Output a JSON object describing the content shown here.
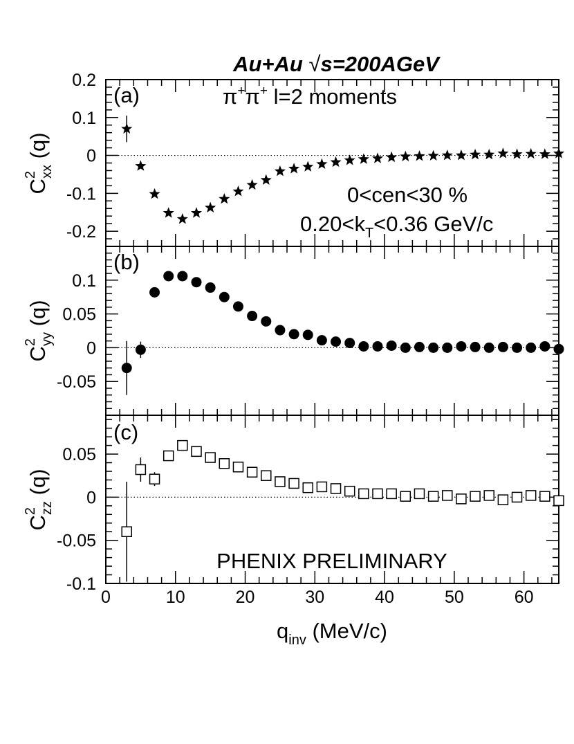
{
  "title": {
    "prefix": "Au+Au ",
    "radical": "√",
    "suffix": "s=200AGeV"
  },
  "xaxis": {
    "label": "q",
    "label_sub": "inv",
    "label_tail": " (MeV/c)",
    "range": [
      0,
      65
    ],
    "ticks": [
      0,
      10,
      20,
      30,
      40,
      50,
      60
    ],
    "tick_labels": [
      "0",
      "10",
      "20",
      "30",
      "40",
      "50",
      "60"
    ]
  },
  "annotations": {
    "line1": {
      "pre": "π",
      "sup1": "+",
      "mid": "π",
      "sup2": "+",
      "post": " l=2 moments"
    },
    "centrality": "0<cen<30 %",
    "kt": {
      "pre": "0.20<k",
      "sub": "T",
      "post": "<0.36 GeV/c"
    },
    "watermark": "PHENIX PRELIMINARY"
  },
  "chart_data": [
    {
      "type": "scatter",
      "panel": "a",
      "panel_label": "(a)",
      "ylabel": {
        "base": "C",
        "sup": "2",
        "sub": "xx",
        "tail": " (q)"
      },
      "ylim": [
        -0.24,
        0.2
      ],
      "yticks": [
        -0.2,
        -0.1,
        0,
        0.1,
        0.2
      ],
      "ytick_labels": [
        "-0.2",
        "-0.1",
        "0",
        "0.1",
        "0.2"
      ],
      "marker": "star",
      "x": [
        3,
        5,
        7,
        9,
        11,
        13,
        15,
        17,
        19,
        21,
        23,
        25,
        27,
        29,
        31,
        33,
        35,
        37,
        39,
        41,
        43,
        45,
        47,
        49,
        51,
        53,
        55,
        57,
        59,
        61,
        63,
        65
      ],
      "y": [
        0.07,
        -0.028,
        -0.102,
        -0.152,
        -0.168,
        -0.152,
        -0.138,
        -0.115,
        -0.095,
        -0.078,
        -0.065,
        -0.042,
        -0.035,
        -0.03,
        -0.023,
        -0.018,
        -0.013,
        -0.01,
        -0.008,
        -0.005,
        -0.003,
        -0.002,
        -0.001,
        0.0,
        0.0,
        0.002,
        0.002,
        0.005,
        0.003,
        0.004,
        0.003,
        0.005
      ],
      "yerr": [
        0.035,
        0.005,
        0.005,
        0.004,
        0.004,
        0.004,
        0.004,
        0.004,
        0.004,
        0.004,
        0.004,
        0.004,
        0.004,
        0.004,
        0.004,
        0.004,
        0.004,
        0.004,
        0.004,
        0.004,
        0.004,
        0.004,
        0.004,
        0.004,
        0.004,
        0.004,
        0.004,
        0.004,
        0.004,
        0.004,
        0.004,
        0.004
      ]
    },
    {
      "type": "scatter",
      "panel": "b",
      "panel_label": "(b)",
      "ylabel": {
        "base": "C",
        "sup": "2",
        "sub": "yy",
        "tail": " (q)"
      },
      "ylim": [
        -0.1,
        0.15
      ],
      "yticks": [
        -0.05,
        0,
        0.05,
        0.1
      ],
      "ytick_labels": [
        "-0.05",
        "0",
        "0.05",
        "0.1"
      ],
      "marker": "filled-circle",
      "x": [
        3,
        5,
        7,
        9,
        11,
        13,
        15,
        17,
        19,
        21,
        23,
        25,
        27,
        29,
        31,
        33,
        35,
        37,
        39,
        41,
        43,
        45,
        47,
        49,
        51,
        53,
        55,
        57,
        59,
        61,
        63,
        65
      ],
      "y": [
        -0.03,
        -0.003,
        0.082,
        0.106,
        0.106,
        0.097,
        0.089,
        0.075,
        0.061,
        0.047,
        0.039,
        0.026,
        0.02,
        0.019,
        0.011,
        0.009,
        0.007,
        0.002,
        0.002,
        0.003,
        0.0,
        0.001,
        0.0,
        0.0,
        0.002,
        0.001,
        0.0,
        0.001,
        0.0,
        0.0,
        0.002,
        -0.002
      ],
      "yerr": [
        0.04,
        0.012,
        0.004,
        0.003,
        0.003,
        0.003,
        0.003,
        0.003,
        0.003,
        0.003,
        0.003,
        0.003,
        0.003,
        0.003,
        0.003,
        0.003,
        0.003,
        0.003,
        0.003,
        0.003,
        0.003,
        0.003,
        0.003,
        0.003,
        0.003,
        0.003,
        0.003,
        0.003,
        0.003,
        0.003,
        0.003,
        0.003
      ]
    },
    {
      "type": "scatter",
      "panel": "c",
      "panel_label": "(c)",
      "ylabel": {
        "base": "C",
        "sup": "2",
        "sub": "zz",
        "tail": " (q)"
      },
      "ylim": [
        -0.1,
        0.095
      ],
      "yticks": [
        -0.1,
        -0.05,
        0,
        0.05
      ],
      "ytick_labels": [
        "-0.1",
        "-0.05",
        "0",
        "0.05"
      ],
      "marker": "open-square",
      "x": [
        3,
        5,
        7,
        9,
        11,
        13,
        15,
        17,
        19,
        21,
        23,
        25,
        27,
        29,
        31,
        33,
        35,
        37,
        39,
        41,
        43,
        45,
        47,
        49,
        51,
        53,
        55,
        57,
        59,
        61,
        63,
        65
      ],
      "y": [
        -0.04,
        0.032,
        0.021,
        0.048,
        0.06,
        0.053,
        0.046,
        0.039,
        0.035,
        0.029,
        0.025,
        0.018,
        0.016,
        0.011,
        0.012,
        0.01,
        0.007,
        0.004,
        0.004,
        0.004,
        0.001,
        0.004,
        0.001,
        0.002,
        -0.002,
        0.001,
        0.002,
        -0.003,
        0.0,
        0.002,
        0.001,
        -0.004
      ],
      "yerr": [
        0.058,
        0.014,
        0.008,
        0.005,
        0.005,
        0.005,
        0.005,
        0.004,
        0.004,
        0.004,
        0.004,
        0.004,
        0.004,
        0.004,
        0.004,
        0.004,
        0.004,
        0.004,
        0.004,
        0.004,
        0.004,
        0.004,
        0.004,
        0.004,
        0.004,
        0.004,
        0.004,
        0.004,
        0.004,
        0.004,
        0.004,
        0.004
      ]
    }
  ]
}
